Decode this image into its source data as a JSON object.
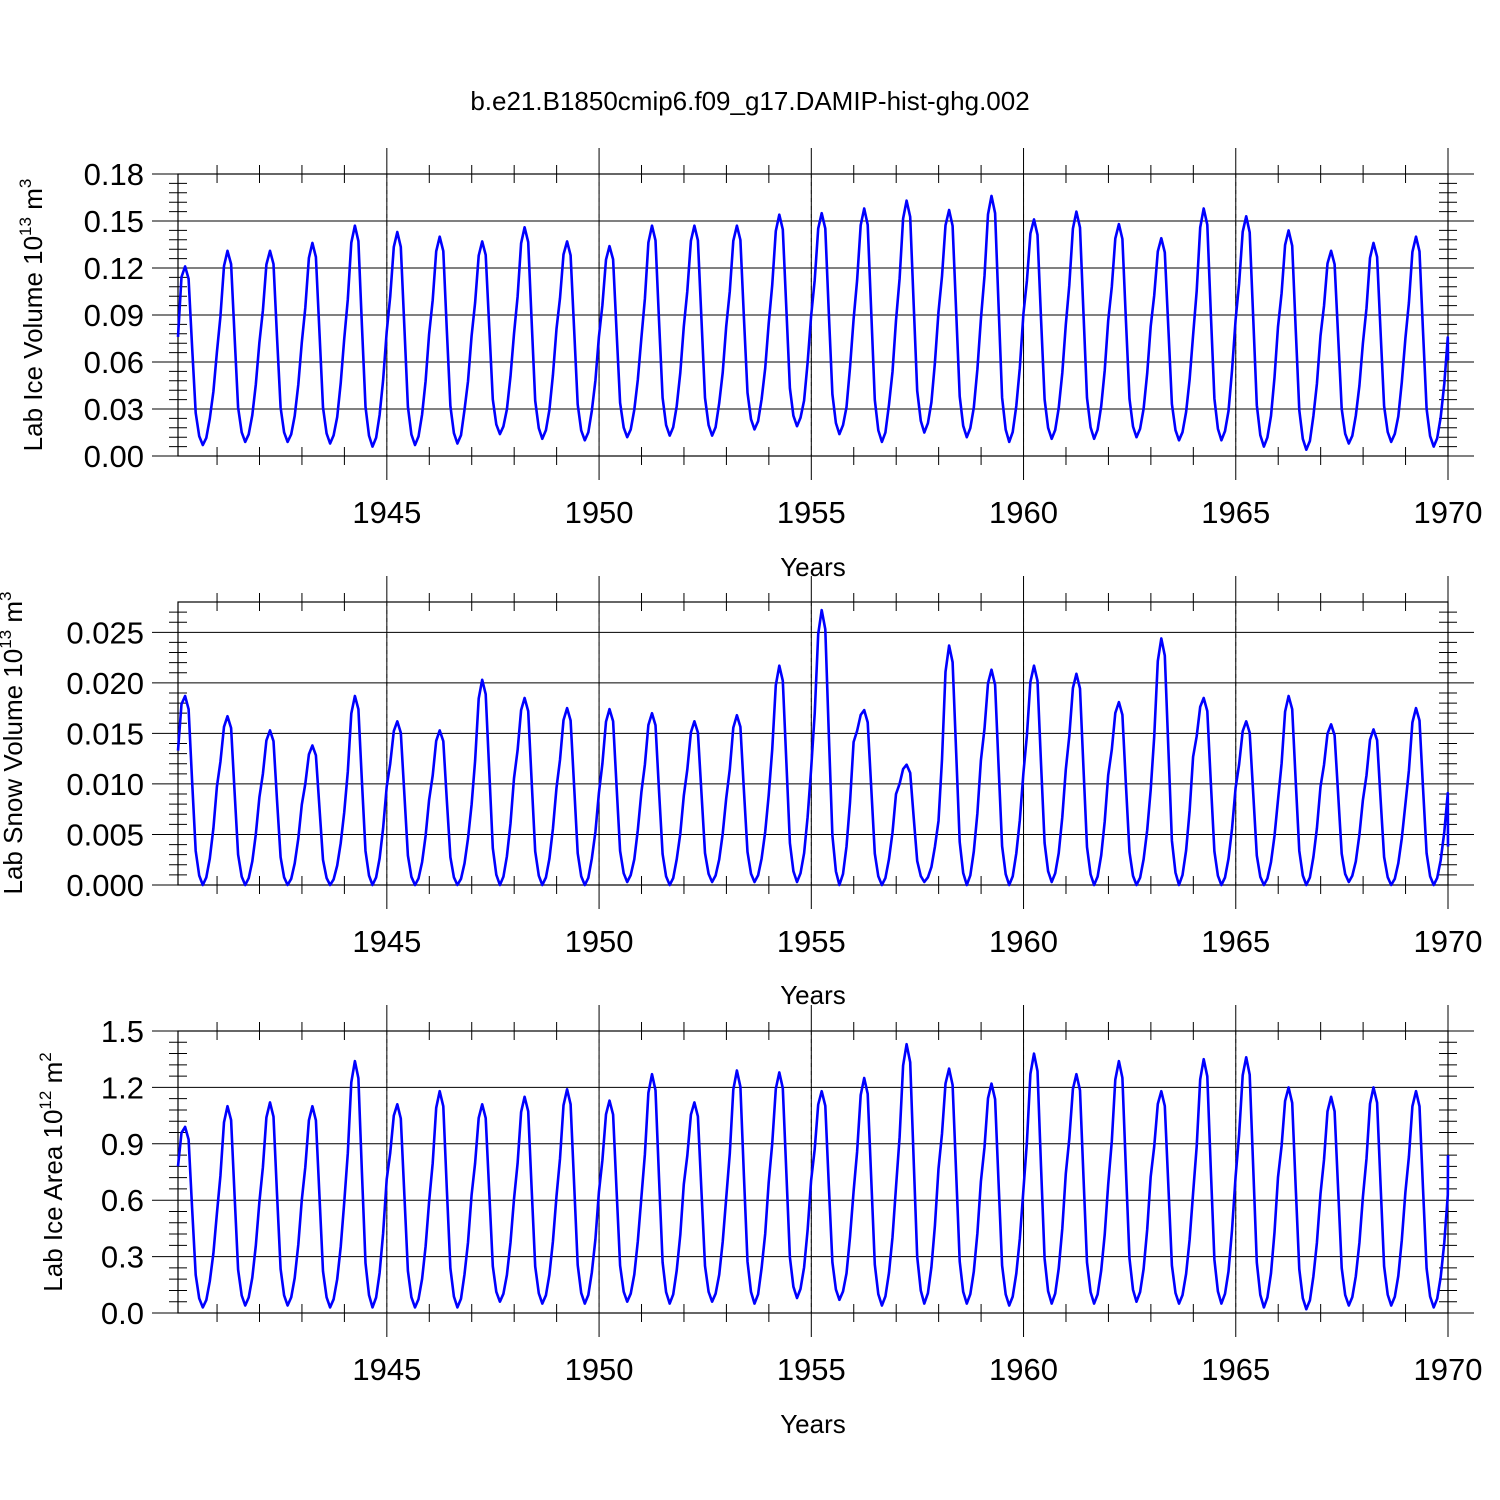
{
  "title": "b.e21.B1850cmip6.f09_g17.DAMIP-hist-ghg.002",
  "line_color": "#0000ff",
  "chart_data": [
    {
      "type": "line",
      "title": "b.e21.B1850cmip6.f09_g17.DAMIP-hist-ghg.002",
      "ylabel_main": "Lab Ice Volume 10",
      "ylabel_exp": "13",
      "ylabel_unit": " m",
      "ylabel_unit_exp": "3",
      "xlabel": "Years",
      "xlim": [
        1940.08,
        1970.0
      ],
      "ylim": [
        0.0,
        0.18
      ],
      "xticks": [
        1945,
        1950,
        1955,
        1960,
        1965,
        1970
      ],
      "xtick_labels": [
        "1945",
        "1950",
        "1955",
        "1960",
        "1965",
        "1970"
      ],
      "yticks": [
        0.0,
        0.03,
        0.06,
        0.09,
        0.12,
        0.15,
        0.18
      ],
      "ytick_labels": [
        "0.00",
        "0.03",
        "0.06",
        "0.09",
        "0.12",
        "0.15",
        "0.18"
      ],
      "grid": "dashed vertical lines at 5-year ticks",
      "x_start": 1940.08,
      "x_step": 0.08333,
      "y_peaks": [
        0.121,
        0.131,
        0.131,
        0.136,
        0.147,
        0.143,
        0.14,
        0.137,
        0.146,
        0.137,
        0.134,
        0.147,
        0.147,
        0.147,
        0.154,
        0.155,
        0.158,
        0.163,
        0.157,
        0.166,
        0.151,
        0.156,
        0.148,
        0.139,
        0.158,
        0.153,
        0.144,
        0.131,
        0.136,
        0.14
      ],
      "y_troughs": [
        0.007,
        0.009,
        0.009,
        0.008,
        0.006,
        0.007,
        0.008,
        0.014,
        0.011,
        0.01,
        0.012,
        0.013,
        0.013,
        0.017,
        0.019,
        0.014,
        0.009,
        0.015,
        0.012,
        0.009,
        0.011,
        0.011,
        0.012,
        0.01,
        0.01,
        0.006,
        0.004,
        0.008,
        0.009,
        0.006
      ],
      "y_start": 0.076,
      "y_end": 0.061
    },
    {
      "type": "line",
      "ylabel_main": "Lab Snow Volume 10",
      "ylabel_exp": "13",
      "ylabel_unit": " m",
      "ylabel_unit_exp": "3",
      "xlabel": "Years",
      "xlim": [
        1940.08,
        1970.0
      ],
      "ylim": [
        0.0,
        0.028
      ],
      "xticks": [
        1945,
        1950,
        1955,
        1960,
        1965,
        1970
      ],
      "xtick_labels": [
        "1945",
        "1950",
        "1955",
        "1960",
        "1965",
        "1970"
      ],
      "yticks": [
        0.0,
        0.005,
        0.01,
        0.015,
        0.02,
        0.025
      ],
      "ytick_labels": [
        "0.000",
        "0.005",
        "0.010",
        "0.015",
        "0.020",
        "0.025"
      ],
      "grid": "dashed vertical lines at 5-year ticks",
      "x_start": 1940.08,
      "x_step": 0.08333,
      "y_peaks": [
        0.0187,
        0.0167,
        0.0153,
        0.0138,
        0.0187,
        0.0162,
        0.0153,
        0.0203,
        0.0185,
        0.0175,
        0.0174,
        0.017,
        0.0162,
        0.0168,
        0.0217,
        0.0272,
        0.0173,
        0.0119,
        0.0237,
        0.0213,
        0.0217,
        0.0209,
        0.0181,
        0.0244,
        0.0185,
        0.0162,
        0.0187,
        0.0159,
        0.0154,
        0.0175
      ],
      "y_troughs": [
        0.0,
        0.0,
        0.0,
        0.0,
        0.0,
        0.0,
        0.0,
        0.0,
        0.0,
        0.0,
        0.0003,
        0.0,
        0.0003,
        0.0003,
        0.0003,
        0.0,
        0.0,
        0.0003,
        0.0,
        0.0,
        0.0003,
        0.0,
        0.0,
        0.0,
        0.0,
        0.0,
        0.0,
        0.0003,
        0.0,
        0.0
      ],
      "y_start": 0.0133,
      "y_end": 0.0038
    },
    {
      "type": "line",
      "ylabel_main": "Lab Ice Area 10",
      "ylabel_exp": "12",
      "ylabel_unit": " m",
      "ylabel_unit_exp": "2",
      "xlabel": "Years",
      "xlim": [
        1940.08,
        1970.0
      ],
      "ylim": [
        0.0,
        1.5
      ],
      "xticks": [
        1945,
        1950,
        1955,
        1960,
        1965,
        1970
      ],
      "xtick_labels": [
        "1945",
        "1950",
        "1955",
        "1960",
        "1965",
        "1970"
      ],
      "yticks": [
        0.0,
        0.3,
        0.6,
        0.9,
        1.2,
        1.5
      ],
      "ytick_labels": [
        "0.0",
        "0.3",
        "0.6",
        "0.9",
        "1.2",
        "1.5"
      ],
      "grid": "dashed vertical lines at 5-year ticks",
      "x_start": 1940.08,
      "x_step": 0.08333,
      "y_peaks": [
        0.99,
        1.1,
        1.12,
        1.1,
        1.34,
        1.11,
        1.18,
        1.11,
        1.15,
        1.19,
        1.13,
        1.27,
        1.12,
        1.29,
        1.28,
        1.18,
        1.25,
        1.43,
        1.3,
        1.22,
        1.38,
        1.27,
        1.34,
        1.18,
        1.35,
        1.36,
        1.2,
        1.15,
        1.2,
        1.18
      ],
      "y_troughs": [
        0.03,
        0.04,
        0.04,
        0.03,
        0.03,
        0.03,
        0.03,
        0.06,
        0.05,
        0.05,
        0.06,
        0.05,
        0.06,
        0.05,
        0.08,
        0.07,
        0.04,
        0.05,
        0.05,
        0.04,
        0.05,
        0.05,
        0.06,
        0.05,
        0.05,
        0.03,
        0.02,
        0.04,
        0.04,
        0.03
      ],
      "y_start": 0.78,
      "y_end": 0.84
    }
  ]
}
